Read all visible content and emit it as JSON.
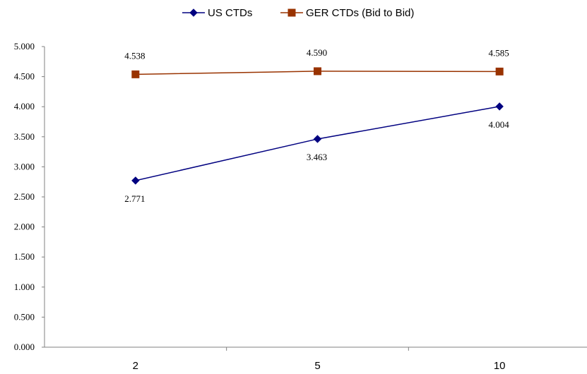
{
  "chart_data": {
    "type": "line",
    "title": "",
    "xlabel": "",
    "ylabel": "",
    "categories": [
      "2",
      "5",
      "10"
    ],
    "ylim": [
      0,
      5
    ],
    "ytick_labels": [
      "0.000",
      "0.500",
      "1.000",
      "1.500",
      "2.000",
      "2.500",
      "3.000",
      "3.500",
      "4.000",
      "4.500",
      "5.000"
    ],
    "grid": false,
    "legend_position": "top-center",
    "series": [
      {
        "name": "US CTDs",
        "values": [
          2.771,
          3.463,
          4.004
        ],
        "labels": [
          "2.771",
          "3.463",
          "4.004"
        ],
        "color": "#000080",
        "marker": "diamond"
      },
      {
        "name": "GER CTDs (Bid to Bid)",
        "values": [
          4.538,
          4.59,
          4.585
        ],
        "labels": [
          "4.538",
          "4.590",
          "4.585"
        ],
        "color": "#993300",
        "marker": "square"
      }
    ]
  }
}
